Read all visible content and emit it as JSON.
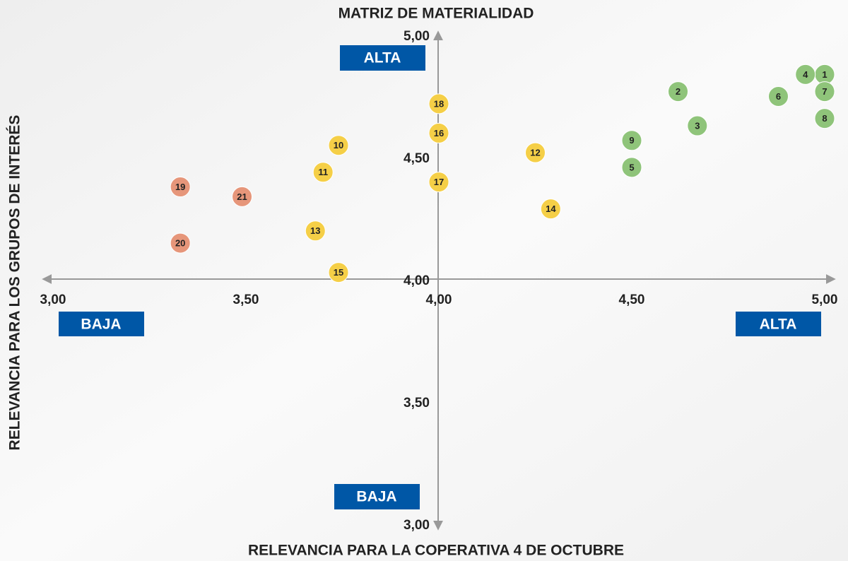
{
  "chart_data": {
    "type": "scatter",
    "title": "MATRIZ DE MATERIALIDAD",
    "x_label": "RELEVANCIA PARA LA COPERATIVA 4 DE OCTUBRE",
    "y_label": "RELEVANCIA PARA LOS GRUPOS DE INTERÉS",
    "xlim": [
      3,
      5
    ],
    "ylim": [
      3,
      5
    ],
    "xticks": [
      {
        "value": 3,
        "label": "3,00"
      },
      {
        "value": 3.5,
        "label": "3,50"
      },
      {
        "value": 4,
        "label": "4,00"
      },
      {
        "value": 4.5,
        "label": "4,50"
      },
      {
        "value": 5,
        "label": "5,00"
      }
    ],
    "yticks": [
      {
        "value": 3,
        "label": "3,00"
      },
      {
        "value": 3.5,
        "label": "3,50"
      },
      {
        "value": 4,
        "label": "4,00"
      },
      {
        "value": 4.5,
        "label": "4,50"
      },
      {
        "value": 5,
        "label": "5,00"
      }
    ],
    "quadrant_labels": {
      "y_high": "ALTA",
      "y_low": "BAJA",
      "x_low": "BAJA",
      "x_high": "ALTA"
    },
    "series": [
      {
        "color": "#8fc47a",
        "labels": [
          "1",
          "4",
          "7",
          "8",
          "6",
          "2",
          "3",
          "9",
          "5"
        ],
        "x": [
          5.0,
          4.95,
          5.0,
          5.0,
          4.88,
          4.62,
          4.67,
          4.5,
          4.5
        ],
        "y": [
          4.84,
          4.84,
          4.77,
          4.66,
          4.75,
          4.77,
          4.63,
          4.57,
          4.46
        ]
      },
      {
        "color": "#f5cf47",
        "labels": [
          "12",
          "14",
          "18",
          "16",
          "17",
          "10",
          "11",
          "13",
          "15"
        ],
        "x": [
          4.25,
          4.29,
          4.0,
          4.0,
          4.0,
          3.74,
          3.7,
          3.68,
          3.74
        ],
        "y": [
          4.52,
          4.29,
          4.72,
          4.6,
          4.4,
          4.55,
          4.44,
          4.2,
          4.03
        ]
      },
      {
        "color": "#e6967a",
        "labels": [
          "19",
          "21",
          "20"
        ],
        "x": [
          3.33,
          3.49,
          3.33
        ],
        "y": [
          4.38,
          4.34,
          4.15
        ]
      }
    ]
  }
}
